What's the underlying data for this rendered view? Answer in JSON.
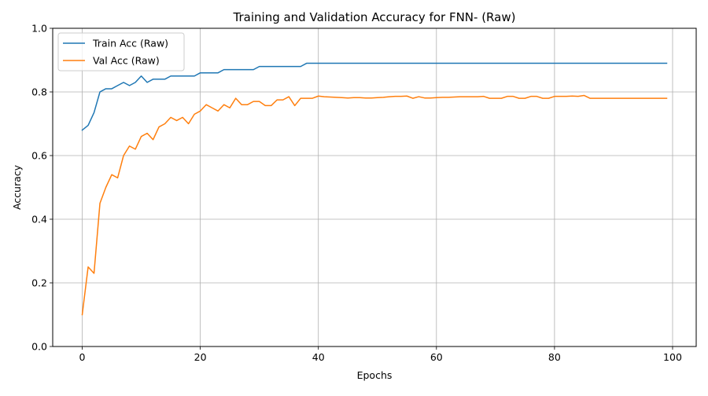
{
  "chart_data": {
    "type": "line",
    "title": "Training and Validation Accuracy for FNN- (Raw)",
    "xlabel": "Epochs",
    "ylabel": "Accuracy",
    "xlim": [
      -5,
      104
    ],
    "ylim": [
      0.0,
      1.0
    ],
    "xticks": [
      0,
      20,
      40,
      60,
      80,
      100
    ],
    "xtick_labels": [
      "0",
      "20",
      "40",
      "60",
      "80",
      "100"
    ],
    "yticks": [
      0.0,
      0.2,
      0.4,
      0.6,
      0.8,
      1.0
    ],
    "ytick_labels": [
      "0.0",
      "0.2",
      "0.4",
      "0.6",
      "0.8",
      "1.0"
    ],
    "grid": true,
    "legend_position": "top-left",
    "series": [
      {
        "name": "Train Acc (Raw)",
        "color": "#1f77b4",
        "x": [
          0,
          1,
          2,
          3,
          4,
          5,
          6,
          7,
          8,
          9,
          10,
          11,
          12,
          13,
          14,
          15,
          16,
          17,
          18,
          19,
          20,
          21,
          22,
          23,
          24,
          25,
          26,
          27,
          28,
          29,
          30,
          31,
          32,
          33,
          34,
          35,
          36,
          37,
          38,
          39,
          40,
          41,
          42,
          43,
          44,
          45,
          46,
          47,
          48,
          49,
          50,
          51,
          52,
          53,
          54,
          55,
          56,
          57,
          58,
          59,
          60,
          61,
          62,
          63,
          64,
          65,
          66,
          67,
          68,
          69,
          70,
          71,
          72,
          73,
          74,
          75,
          76,
          77,
          78,
          79,
          80,
          81,
          82,
          83,
          84,
          85,
          86,
          87,
          88,
          89,
          90,
          91,
          92,
          93,
          94,
          95,
          96,
          97,
          98,
          99
        ],
        "y": [
          0.68,
          0.695,
          0.735,
          0.8,
          0.81,
          0.81,
          0.82,
          0.83,
          0.82,
          0.83,
          0.85,
          0.83,
          0.84,
          0.84,
          0.84,
          0.85,
          0.85,
          0.85,
          0.85,
          0.85,
          0.86,
          0.86,
          0.86,
          0.86,
          0.87,
          0.87,
          0.87,
          0.87,
          0.87,
          0.87,
          0.88,
          0.88,
          0.88,
          0.88,
          0.88,
          0.88,
          0.88,
          0.88,
          0.89,
          0.89,
          0.89,
          0.89,
          0.89,
          0.89,
          0.89,
          0.89,
          0.89,
          0.89,
          0.89,
          0.89,
          0.89,
          0.89,
          0.89,
          0.89,
          0.89,
          0.89,
          0.89,
          0.89,
          0.89,
          0.89,
          0.89,
          0.89,
          0.89,
          0.89,
          0.89,
          0.89,
          0.89,
          0.89,
          0.89,
          0.89,
          0.89,
          0.89,
          0.89,
          0.89,
          0.89,
          0.89,
          0.89,
          0.89,
          0.89,
          0.89,
          0.89,
          0.89,
          0.89,
          0.89,
          0.89,
          0.89,
          0.89,
          0.89,
          0.89,
          0.89,
          0.89,
          0.89,
          0.89,
          0.89,
          0.89,
          0.89,
          0.89,
          0.89,
          0.89,
          0.89
        ]
      },
      {
        "name": "Val Acc (Raw)",
        "color": "#ff7f0e",
        "x": [
          0,
          1,
          2,
          3,
          4,
          5,
          6,
          7,
          8,
          9,
          10,
          11,
          12,
          13,
          14,
          15,
          16,
          17,
          18,
          19,
          20,
          21,
          22,
          23,
          24,
          25,
          26,
          27,
          28,
          29,
          30,
          31,
          32,
          33,
          34,
          35,
          36,
          37,
          38,
          39,
          40,
          41,
          42,
          43,
          44,
          45,
          46,
          47,
          48,
          49,
          50,
          51,
          52,
          53,
          54,
          55,
          56,
          57,
          58,
          59,
          60,
          61,
          62,
          63,
          64,
          65,
          66,
          67,
          68,
          69,
          70,
          71,
          72,
          73,
          74,
          75,
          76,
          77,
          78,
          79,
          80,
          81,
          82,
          83,
          84,
          85,
          86,
          87,
          88,
          89,
          90,
          91,
          92,
          93,
          94,
          95,
          96,
          97,
          98,
          99
        ],
        "y": [
          0.1,
          0.25,
          0.23,
          0.45,
          0.5,
          0.54,
          0.53,
          0.6,
          0.63,
          0.62,
          0.66,
          0.67,
          0.65,
          0.69,
          0.7,
          0.72,
          0.71,
          0.72,
          0.7,
          0.73,
          0.74,
          0.76,
          0.75,
          0.74,
          0.76,
          0.75,
          0.78,
          0.76,
          0.76,
          0.77,
          0.77,
          0.757,
          0.757,
          0.775,
          0.775,
          0.785,
          0.757,
          0.78,
          0.78,
          0.78,
          0.787,
          0.785,
          0.784,
          0.783,
          0.782,
          0.781,
          0.782,
          0.782,
          0.781,
          0.781,
          0.782,
          0.783,
          0.785,
          0.786,
          0.786,
          0.787,
          0.78,
          0.785,
          0.781,
          0.781,
          0.782,
          0.783,
          0.783,
          0.784,
          0.785,
          0.785,
          0.785,
          0.785,
          0.786,
          0.78,
          0.78,
          0.78,
          0.786,
          0.786,
          0.78,
          0.78,
          0.786,
          0.786,
          0.78,
          0.78,
          0.786,
          0.786,
          0.786,
          0.787,
          0.786,
          0.789,
          0.78,
          0.78,
          0.78,
          0.78,
          0.78,
          0.78,
          0.78,
          0.78,
          0.78,
          0.78,
          0.78,
          0.78,
          0.78,
          0.78
        ]
      }
    ]
  }
}
